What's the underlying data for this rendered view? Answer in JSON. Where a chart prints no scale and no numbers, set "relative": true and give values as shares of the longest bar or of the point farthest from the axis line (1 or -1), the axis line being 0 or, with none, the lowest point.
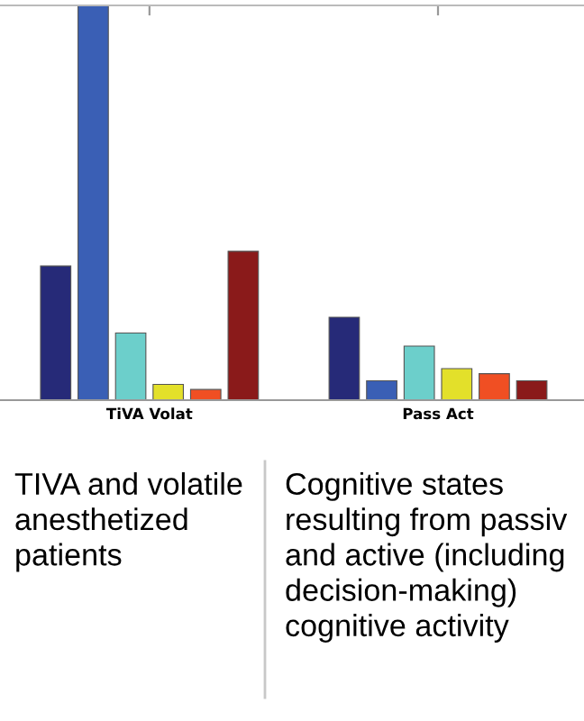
{
  "chart_data": {
    "type": "bar",
    "relative": true,
    "categories": [
      "TiVA Volat",
      "Pass Act"
    ],
    "series": [
      {
        "color": "#262a78",
        "values": [
          0.34,
          0.21
        ]
      },
      {
        "color": "#3a5fb5",
        "values": [
          1,
          0.049
        ]
      },
      {
        "color": "#6ccfcb",
        "values": [
          0.17,
          0.137
        ]
      },
      {
        "color": "#e3e02a",
        "values": [
          0.04,
          0.08
        ]
      },
      {
        "color": "#f04f23",
        "values": [
          0.027,
          0.067
        ]
      },
      {
        "color": "#8a1a1a",
        "values": [
          0.377,
          0.049
        ]
      }
    ],
    "annotations": [
      "TIVA and volatile\nanesthetized\npatients",
      "Cognitive states\nresulting from passiv\nand active (including\ndecision-making)\ncognitive activity"
    ],
    "grid": false
  }
}
